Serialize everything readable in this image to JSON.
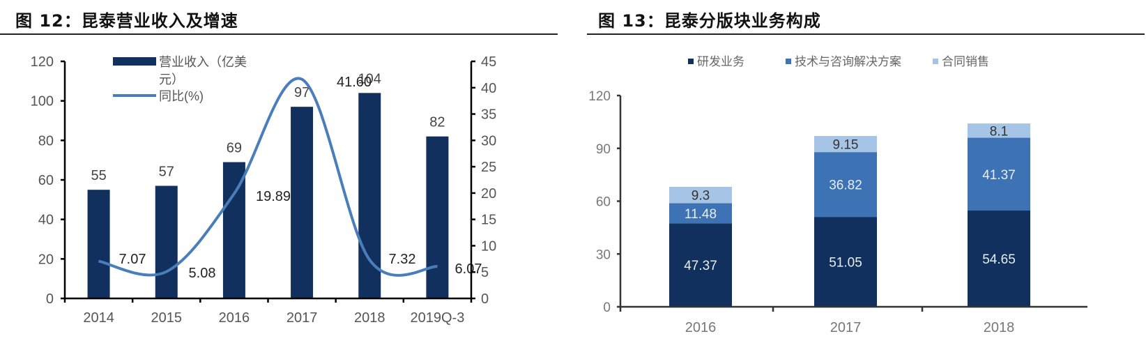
{
  "figures": [
    {
      "title": "图 12：昆泰营业收入及增速",
      "title_prefix": "图",
      "title_number": "12",
      "title_text": "昆泰营业收入及增速"
    },
    {
      "title": "图 13：昆泰分版块业务构成",
      "title_prefix": "图",
      "title_number": "13",
      "title_text": "昆泰分版块业务构成"
    }
  ],
  "colors": {
    "bar_navy": "#12305E",
    "line_blue": "#4A7EBB",
    "seg_rd": "#12305E",
    "seg_tech": "#3D72B4",
    "seg_contract": "#A6C4E6",
    "axis": "#000000",
    "tick_label": "#555555"
  },
  "chart_data": [
    {
      "type": "bar+line",
      "title": "图 12：昆泰营业收入及增速",
      "categories": [
        "2014",
        "2015",
        "2016",
        "2017",
        "2018",
        "2019Q-3"
      ],
      "series": [
        {
          "name": "营业收入（亿美元）",
          "type": "bar",
          "axis": "left",
          "values": [
            55,
            57,
            69,
            97,
            104,
            82
          ],
          "labels": [
            "55",
            "57",
            "69",
            "97",
            "104",
            "82"
          ]
        },
        {
          "name": "同比(%)",
          "type": "line",
          "axis": "right",
          "values": [
            7.07,
            5.08,
            19.89,
            41.6,
            7.32,
            6.07
          ],
          "labels": [
            "7.07",
            "5.08",
            "19.89",
            "41.60",
            "7.32",
            "6.07"
          ]
        }
      ],
      "left_axis": {
        "min": 0,
        "max": 120,
        "ticks": [
          0,
          20,
          40,
          60,
          80,
          100,
          120
        ]
      },
      "right_axis": {
        "min": 0,
        "max": 45,
        "ticks": [
          0,
          5,
          10,
          15,
          20,
          25,
          30,
          35,
          40,
          45
        ]
      },
      "legend": [
        "营业收入（亿美元）",
        "同比(%)"
      ],
      "legend_position": "top-left inside",
      "grid": false
    },
    {
      "type": "stacked_bar",
      "title": "图 13：昆泰分版块业务构成",
      "categories": [
        "2016",
        "2017",
        "2018"
      ],
      "series": [
        {
          "name": "研发业务",
          "values": [
            47.37,
            51.05,
            54.65
          ],
          "labels": [
            "47.37",
            "51.05",
            "54.65"
          ]
        },
        {
          "name": "技术与咨询解决方案",
          "values": [
            11.48,
            36.82,
            41.37
          ],
          "labels": [
            "11.48",
            "36.82",
            "41.37"
          ]
        },
        {
          "name": "合同销售",
          "values": [
            9.3,
            9.15,
            8.1
          ],
          "labels": [
            "9.3",
            "9.15",
            "8.1"
          ]
        }
      ],
      "y_axis": {
        "min": 0,
        "max": 120,
        "ticks": [
          0,
          30,
          60,
          90,
          120
        ]
      },
      "legend": [
        "研发业务",
        "技术与咨询解决方案",
        "合同销售"
      ],
      "legend_position": "top",
      "grid": false
    }
  ]
}
